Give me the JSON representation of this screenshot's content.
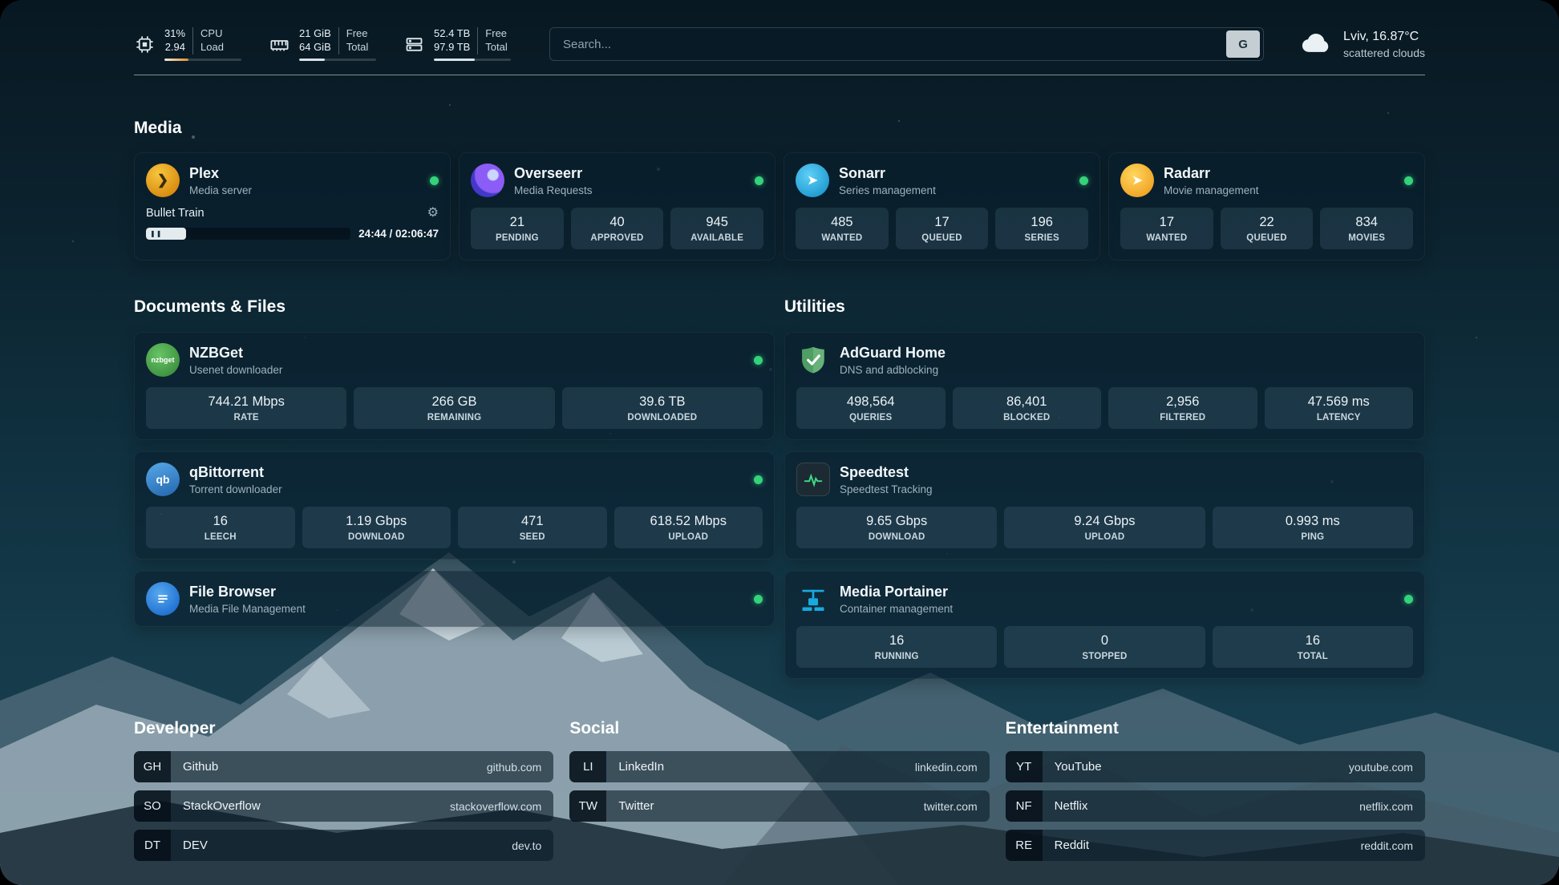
{
  "header": {
    "cpu": {
      "line1": "31%",
      "line2": "2.94",
      "label1": "CPU",
      "label2": "Load",
      "bar_pct": 31
    },
    "ram": {
      "line1": "21 GiB",
      "line2": "64 GiB",
      "label1": "Free",
      "label2": "Total",
      "bar_pct": 33
    },
    "disk": {
      "line1": "52.4 TB",
      "line2": "97.9 TB",
      "label1": "Free",
      "label2": "Total",
      "bar_pct": 53
    },
    "search": {
      "placeholder": "Search...",
      "engine_label": "G"
    },
    "weather": {
      "location": "Lviv, 16.87°C",
      "condition": "scattered clouds"
    }
  },
  "media": {
    "title": "Media",
    "plex": {
      "name": "Plex",
      "subtitle": "Media server",
      "now_playing": "Bullet Train",
      "time": "24:44 / 02:06:47",
      "progress_pct": 19.5
    },
    "overseerr": {
      "name": "Overseerr",
      "subtitle": "Media Requests",
      "stats": [
        {
          "value": "21",
          "label": "PENDING"
        },
        {
          "value": "40",
          "label": "APPROVED"
        },
        {
          "value": "945",
          "label": "AVAILABLE"
        }
      ]
    },
    "sonarr": {
      "name": "Sonarr",
      "subtitle": "Series management",
      "stats": [
        {
          "value": "485",
          "label": "WANTED"
        },
        {
          "value": "17",
          "label": "QUEUED"
        },
        {
          "value": "196",
          "label": "SERIES"
        }
      ]
    },
    "radarr": {
      "name": "Radarr",
      "subtitle": "Movie management",
      "stats": [
        {
          "value": "17",
          "label": "WANTED"
        },
        {
          "value": "22",
          "label": "QUEUED"
        },
        {
          "value": "834",
          "label": "MOVIES"
        }
      ]
    }
  },
  "documents": {
    "title": "Documents & Files",
    "nzbget": {
      "name": "NZBGet",
      "subtitle": "Usenet downloader",
      "icon_text": "nzbget",
      "stats": [
        {
          "value": "744.21 Mbps",
          "label": "RATE"
        },
        {
          "value": "266 GB",
          "label": "REMAINING"
        },
        {
          "value": "39.6 TB",
          "label": "DOWNLOADED"
        }
      ]
    },
    "qbittorrent": {
      "name": "qBittorrent",
      "subtitle": "Torrent downloader",
      "icon_text": "qb",
      "stats": [
        {
          "value": "16",
          "label": "LEECH"
        },
        {
          "value": "1.19 Gbps",
          "label": "DOWNLOAD"
        },
        {
          "value": "471",
          "label": "SEED"
        },
        {
          "value": "618.52 Mbps",
          "label": "UPLOAD"
        }
      ]
    },
    "filebrowser": {
      "name": "File Browser",
      "subtitle": "Media File Management"
    }
  },
  "utilities": {
    "title": "Utilities",
    "adguard": {
      "name": "AdGuard Home",
      "subtitle": "DNS and adblocking",
      "stats": [
        {
          "value": "498,564",
          "label": "QUERIES"
        },
        {
          "value": "86,401",
          "label": "BLOCKED"
        },
        {
          "value": "2,956",
          "label": "FILTERED"
        },
        {
          "value": "47.569 ms",
          "label": "LATENCY"
        }
      ]
    },
    "speedtest": {
      "name": "Speedtest",
      "subtitle": "Speedtest Tracking",
      "stats": [
        {
          "value": "9.65 Gbps",
          "label": "DOWNLOAD"
        },
        {
          "value": "9.24 Gbps",
          "label": "UPLOAD"
        },
        {
          "value": "0.993 ms",
          "label": "PING"
        }
      ]
    },
    "portainer": {
      "name": "Media Portainer",
      "subtitle": "Container management",
      "stats": [
        {
          "value": "16",
          "label": "RUNNING"
        },
        {
          "value": "0",
          "label": "STOPPED"
        },
        {
          "value": "16",
          "label": "TOTAL"
        }
      ]
    }
  },
  "bookmarks": {
    "developer": {
      "title": "Developer",
      "items": [
        {
          "abbr": "GH",
          "name": "Github",
          "url": "github.com"
        },
        {
          "abbr": "SO",
          "name": "StackOverflow",
          "url": "stackoverflow.com"
        },
        {
          "abbr": "DT",
          "name": "DEV",
          "url": "dev.to"
        }
      ]
    },
    "social": {
      "title": "Social",
      "items": [
        {
          "abbr": "LI",
          "name": "LinkedIn",
          "url": "linkedin.com"
        },
        {
          "abbr": "TW",
          "name": "Twitter",
          "url": "twitter.com"
        }
      ]
    },
    "entertainment": {
      "title": "Entertainment",
      "items": [
        {
          "abbr": "YT",
          "name": "YouTube",
          "url": "youtube.com"
        },
        {
          "abbr": "NF",
          "name": "Netflix",
          "url": "netflix.com"
        },
        {
          "abbr": "RE",
          "name": "Reddit",
          "url": "reddit.com"
        }
      ]
    }
  },
  "colors": {
    "status_online": "#34d27b",
    "cpu_bar": "#df8e34",
    "accent_snow": "#e3ebef"
  }
}
